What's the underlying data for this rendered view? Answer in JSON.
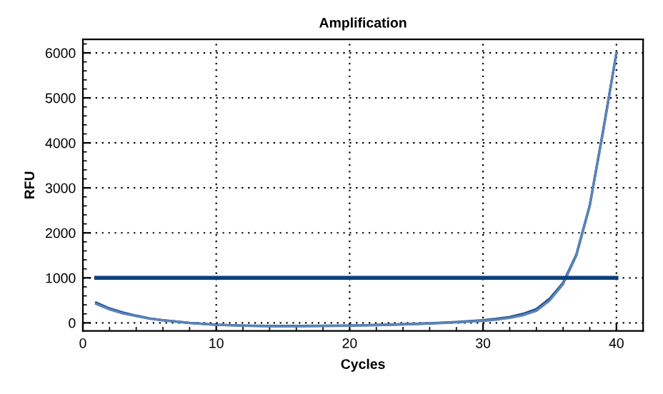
{
  "chart_data": {
    "type": "line",
    "title": "Amplification",
    "xlabel": "Cycles",
    "ylabel": "RFU",
    "x": [
      1,
      2,
      3,
      4,
      5,
      6,
      7,
      8,
      9,
      10,
      12,
      14,
      16,
      18,
      20,
      22,
      24,
      26,
      28,
      30,
      31,
      32,
      33,
      34,
      35,
      36,
      37,
      38,
      39,
      40
    ],
    "series": [
      {
        "color": "#1c4f8a",
        "values": [
          450,
          320,
          230,
          160,
          100,
          60,
          30,
          0,
          -20,
          -40,
          -60,
          -70,
          -70,
          -65,
          -60,
          -45,
          -30,
          -10,
          20,
          60,
          90,
          130,
          200,
          305,
          540,
          890,
          1520,
          2610,
          4270,
          6000
        ]
      },
      {
        "color": "#5b84b8",
        "values": [
          420,
          300,
          210,
          150,
          95,
          55,
          25,
          -5,
          -25,
          -45,
          -65,
          -75,
          -75,
          -70,
          -65,
          -50,
          -35,
          -15,
          10,
          45,
          70,
          110,
          170,
          270,
          500,
          860,
          1500,
          2600,
          4250,
          6000
        ]
      },
      {
        "color": "#0b3f7a",
        "x": [
          1,
          40
        ],
        "values": [
          1000,
          1000
        ]
      }
    ],
    "xlim": [
      0,
      42
    ],
    "ylim": [
      -180,
      6300
    ],
    "xticks": [
      0,
      10,
      20,
      30,
      40
    ],
    "yticks": [
      0,
      1000,
      2000,
      3000,
      4000,
      5000,
      6000
    ],
    "grid": true,
    "marker": "none",
    "line_style": "solid"
  }
}
